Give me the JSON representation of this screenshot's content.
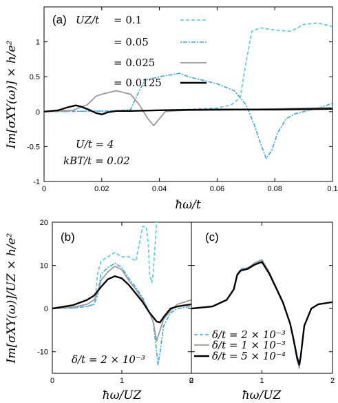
{
  "colors": {
    "cyan": "#52c8e6",
    "blue": "#3aa6e6",
    "gray": "#9a9a9a",
    "black": "#000000"
  },
  "ylabel_a": "Im[σXY(ω)] × h/e²",
  "ylabel_bc": "Im[σXY(ω)]/UZ × h/e²",
  "chart_data": [
    {
      "type": "line",
      "panel": "(a)",
      "xlabel": "ħω/t",
      "ylabel": "Im[σXY(ω)] × h/e²",
      "xlim": [
        0,
        0.1
      ],
      "ylim": [
        -1,
        1.5
      ],
      "xticks": [
        0,
        0.02,
        0.04,
        0.06,
        0.08,
        0.1
      ],
      "xtick_labels": [
        "0",
        "0.02",
        "0.04",
        "0.06",
        "0.08",
        "0.1"
      ],
      "yticks": [
        -1,
        -0.5,
        0,
        0.5,
        1
      ],
      "ytick_labels": [
        "-1",
        "-0.5",
        "0",
        "0.5",
        "1"
      ],
      "legend_title": "UZ/t",
      "annotations": [
        "U/t = 4",
        "kBT/t = 0.02"
      ],
      "series": [
        {
          "name": "= 0.1",
          "color": "#52c8e6",
          "dash": "dashed",
          "x": [
            0,
            0.02,
            0.04,
            0.06,
            0.065,
            0.068,
            0.07,
            0.072,
            0.075,
            0.08,
            0.085,
            0.087,
            0.09,
            0.095,
            0.1
          ],
          "y": [
            0,
            0.01,
            0.02,
            0.05,
            0.1,
            0.2,
            0.7,
            1.15,
            1.2,
            1.17,
            1.15,
            1.18,
            1.25,
            1.27,
            1.22
          ]
        },
        {
          "name": "= 0.05",
          "color": "#3aa6e6",
          "dash": "dotdash",
          "x": [
            0,
            0.025,
            0.03,
            0.033,
            0.035,
            0.04,
            0.047,
            0.05,
            0.06,
            0.066,
            0.07,
            0.073,
            0.075,
            0.077,
            0.079,
            0.081,
            0.084,
            0.087,
            0.09,
            0.095,
            0.1
          ],
          "y": [
            0,
            0.01,
            0.03,
            0.3,
            0.45,
            0.5,
            0.55,
            0.5,
            0.4,
            0.3,
            0.1,
            -0.2,
            -0.45,
            -0.67,
            -0.55,
            -0.3,
            -0.1,
            -0.03,
            0,
            0.05,
            0.12
          ]
        },
        {
          "name": "= 0.025",
          "color": "#9a9a9a",
          "dash": "solid",
          "x": [
            0,
            0.01,
            0.015,
            0.018,
            0.02,
            0.025,
            0.03,
            0.033,
            0.036,
            0.038,
            0.04,
            0.042,
            0.045,
            0.05,
            0.06,
            0.08,
            0.1
          ],
          "y": [
            0,
            0.02,
            0.1,
            0.22,
            0.25,
            0.3,
            0.25,
            0.1,
            -0.1,
            -0.2,
            -0.1,
            0,
            0.01,
            0.02,
            0.02,
            0.04,
            0.06
          ]
        },
        {
          "name": "= 0.0125",
          "color": "#000000",
          "dash": "solid",
          "x": [
            0,
            0.005,
            0.008,
            0.011,
            0.013,
            0.016,
            0.018,
            0.02,
            0.022,
            0.025,
            0.03,
            0.04,
            0.06,
            0.08,
            0.1
          ],
          "y": [
            0,
            0.02,
            0.06,
            0.09,
            0.07,
            0.02,
            -0.02,
            -0.04,
            -0.01,
            0.01,
            0.01,
            0.02,
            0.03,
            0.03,
            0.04
          ]
        }
      ]
    },
    {
      "type": "line",
      "panel": "(b)",
      "xlabel": "ħω/UZ",
      "xlim": [
        0,
        2
      ],
      "ylim": [
        -15,
        20
      ],
      "xticks": [
        0,
        1,
        2
      ],
      "xtick_labels": [
        "0",
        "1",
        "2"
      ],
      "yticks": [
        -10,
        0,
        10,
        20
      ],
      "ytick_labels": [
        "-10",
        "0",
        "10",
        "20"
      ],
      "annotations": [
        "δ/t = 2 × 10⁻³"
      ],
      "series": [
        {
          "color": "#52c8e6",
          "dash": "dashed",
          "x": [
            0,
            0.3,
            0.5,
            0.6,
            0.62,
            0.65,
            0.7,
            0.8,
            0.9,
            1.0,
            1.1,
            1.2,
            1.25,
            1.3,
            1.35,
            1.38,
            1.4,
            1.43,
            1.45,
            1.48,
            1.5,
            1.52
          ],
          "y": [
            0,
            0.1,
            0.5,
            1,
            2,
            8,
            11,
            12,
            13,
            12,
            12,
            11,
            15,
            19,
            19,
            15,
            8,
            6,
            8,
            15,
            20,
            20
          ]
        },
        {
          "color": "#3aa6e6",
          "dash": "dotdash",
          "x": [
            0,
            0.3,
            0.5,
            0.6,
            0.65,
            0.7,
            0.8,
            0.9,
            1.0,
            1.1,
            1.2,
            1.3,
            1.4,
            1.45,
            1.5,
            1.52,
            1.55,
            1.6,
            1.7,
            1.8,
            2.0
          ],
          "y": [
            0,
            0.2,
            0.5,
            1,
            3,
            8,
            9.5,
            10.5,
            9.5,
            7,
            5,
            2.5,
            -1,
            -3,
            -10,
            -13,
            -10,
            -4,
            -1,
            0,
            0.5
          ]
        },
        {
          "color": "#9a9a9a",
          "dash": "solid",
          "x": [
            0,
            0.3,
            0.5,
            0.6,
            0.65,
            0.7,
            0.8,
            0.9,
            1.0,
            1.1,
            1.2,
            1.3,
            1.4,
            1.45,
            1.5,
            1.55,
            1.6,
            1.7,
            1.8,
            2.0
          ],
          "y": [
            0,
            0.3,
            1,
            2,
            3.5,
            6.5,
            8.5,
            9.8,
            9,
            6.5,
            4.5,
            2,
            -1,
            -3,
            -7.5,
            -5,
            -2.5,
            -0.5,
            1,
            2
          ]
        },
        {
          "color": "#000000",
          "dash": "solid",
          "x": [
            0,
            0.3,
            0.5,
            0.6,
            0.7,
            0.8,
            0.9,
            1.0,
            1.1,
            1.2,
            1.3,
            1.4,
            1.5,
            1.55,
            1.6,
            1.7,
            1.8,
            2.0
          ],
          "y": [
            0,
            0.8,
            2,
            3,
            5,
            6.8,
            7.5,
            7,
            5.5,
            3.5,
            1.5,
            -1,
            -3,
            -3.2,
            -2,
            0,
            0.5,
            1
          ]
        }
      ]
    },
    {
      "type": "line",
      "panel": "(c)",
      "xlabel": "ħω/UZ",
      "xlim": [
        0,
        2
      ],
      "ylim": [
        -15,
        20
      ],
      "xticks": [
        0,
        1,
        2
      ],
      "xtick_labels": [
        "0",
        "1",
        "2"
      ],
      "series": [
        {
          "name": "δ/t = 2 × 10⁻³",
          "color": "#3aa6e6",
          "dash": "dashed",
          "x": [
            0,
            0.3,
            0.5,
            0.6,
            0.65,
            0.7,
            0.8,
            0.9,
            1.0,
            1.1,
            1.2,
            1.3,
            1.4,
            1.45,
            1.5,
            1.53,
            1.55,
            1.6,
            1.7,
            1.8,
            2.0
          ],
          "y": [
            0,
            0.5,
            2,
            4.5,
            8,
            9.2,
            9.5,
            10.5,
            11.2,
            8.5,
            5,
            1.5,
            -3.5,
            -7,
            -11,
            -12.5,
            -11,
            -4,
            0,
            1,
            1.5
          ]
        },
        {
          "name": "δ/t = 1 × 10⁻³",
          "color": "#9a9a9a",
          "dash": "solid",
          "x": [
            0,
            0.3,
            0.5,
            0.6,
            0.65,
            0.7,
            0.8,
            0.9,
            1.0,
            1.1,
            1.2,
            1.3,
            1.4,
            1.45,
            1.5,
            1.53,
            1.55,
            1.6,
            1.7,
            1.8,
            2.0
          ],
          "y": [
            0,
            0.5,
            2,
            4.5,
            8,
            9,
            9.4,
            10.6,
            11.3,
            8.5,
            5,
            1.5,
            -3.5,
            -7.5,
            -12,
            -13.8,
            -11,
            -4,
            0,
            1,
            1.5
          ]
        },
        {
          "name": "δ/t = 5 × 10⁻⁴",
          "color": "#000000",
          "dash": "solid",
          "x": [
            0,
            0.3,
            0.5,
            0.6,
            0.65,
            0.7,
            0.8,
            0.9,
            1.0,
            1.1,
            1.2,
            1.3,
            1.4,
            1.45,
            1.5,
            1.53,
            1.55,
            1.6,
            1.7,
            1.8,
            2.0
          ],
          "y": [
            0,
            0.5,
            2,
            4.4,
            7.8,
            8.8,
            9.2,
            10.2,
            10.8,
            8.2,
            4.8,
            1.3,
            -3.5,
            -7.3,
            -11.5,
            -13,
            -11,
            -4,
            0,
            1,
            1.5
          ]
        }
      ]
    }
  ]
}
